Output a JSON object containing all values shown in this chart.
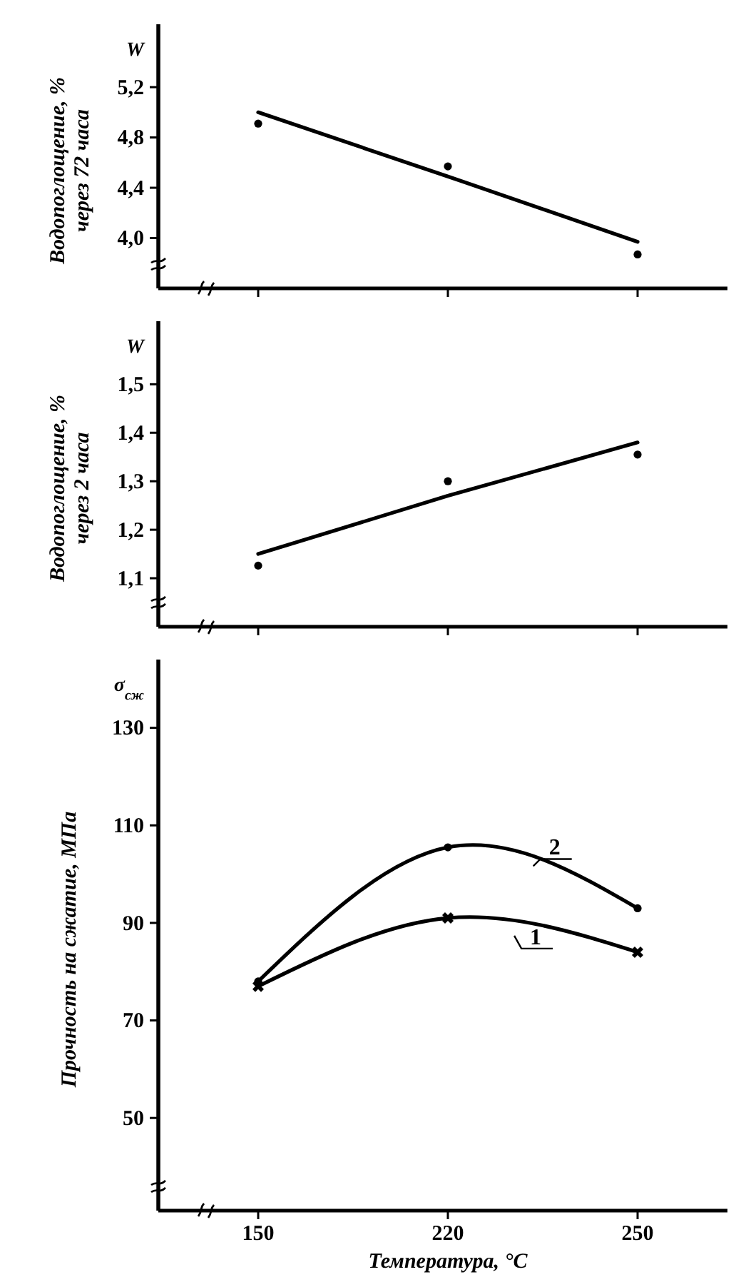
{
  "chart_data": [
    {
      "type": "scatter",
      "ylabel": "Водопоглощение, %\nчерез 72 часа",
      "annotations": [
        "W"
      ],
      "categories": [
        "150",
        "220",
        "250"
      ],
      "ylim": [
        3.6,
        5.7
      ],
      "yticks": [
        {
          "value": 4.0,
          "label": "4,0"
        },
        {
          "value": 4.4,
          "label": "4,4"
        },
        {
          "value": 4.8,
          "label": "4,8"
        },
        {
          "value": 5.2,
          "label": "5,2"
        }
      ],
      "tick_labels": "y",
      "series": [
        {
          "type": "scatter",
          "color": "#000000",
          "marker": "circle",
          "values": [
            4.91,
            4.57,
            3.87
          ]
        },
        {
          "type": "line",
          "color": "#000000",
          "marker": "none",
          "values": [
            5.0,
            4.49,
            3.97
          ]
        }
      ]
    },
    {
      "type": "scatter",
      "ylabel": "Водопоглощение, %\nчерез 2 часа",
      "annotations": [
        "W"
      ],
      "categories": [
        "150",
        "220",
        "250"
      ],
      "ylim": [
        1.0,
        1.63
      ],
      "yticks": [
        {
          "value": 1.1,
          "label": "1,1"
        },
        {
          "value": 1.2,
          "label": "1,2"
        },
        {
          "value": 1.3,
          "label": "1,3"
        },
        {
          "value": 1.4,
          "label": "1,4"
        },
        {
          "value": 1.5,
          "label": "1,5"
        }
      ],
      "tick_labels": "y",
      "series": [
        {
          "type": "scatter",
          "color": "#000000",
          "marker": "circle",
          "values": [
            1.126,
            1.3,
            1.355
          ]
        },
        {
          "type": "line",
          "color": "#000000",
          "marker": "none",
          "values": [
            1.15,
            1.27,
            1.38
          ]
        }
      ]
    },
    {
      "type": "line",
      "ylabel": "Прочность на сжатие, МПа",
      "xlabel": "Температура, °C",
      "annotations": [
        "σ$_{сж}$"
      ],
      "categories": [
        "150",
        "220",
        "250"
      ],
      "ylim": [
        31,
        144
      ],
      "yticks": [
        50,
        70,
        90,
        110,
        130
      ],
      "series": [
        {
          "name": "1",
          "color": "#000000",
          "marker": "cross",
          "values": [
            77,
            91,
            84
          ]
        },
        {
          "name": "2",
          "color": "#000000",
          "marker": "circle",
          "values": [
            78,
            105.5,
            93
          ]
        }
      ]
    }
  ]
}
